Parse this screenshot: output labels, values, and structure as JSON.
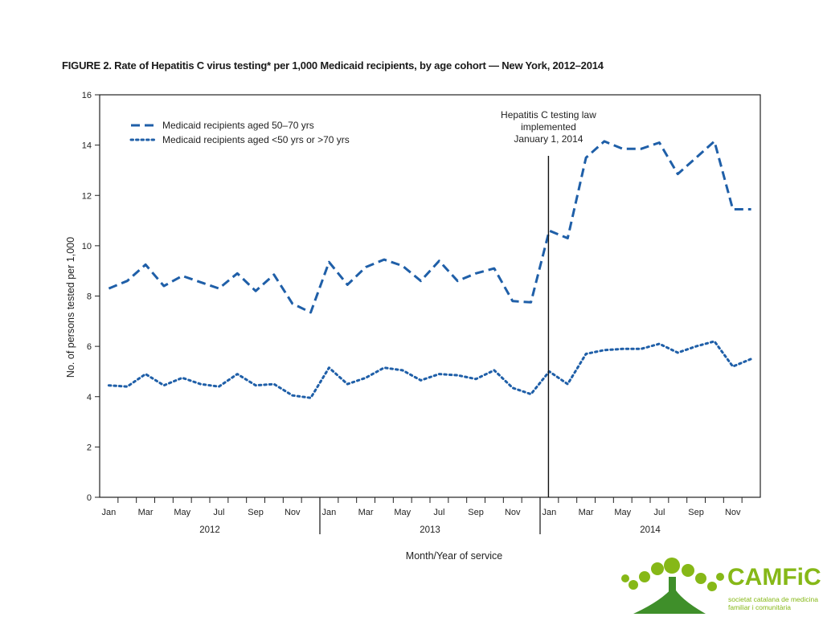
{
  "figure": {
    "title": "FIGURE 2. Rate of Hepatitis C virus testing* per 1,000 Medicaid recipients, by age cohort — New York, 2012–2014"
  },
  "chart_data": {
    "type": "line",
    "xlabel": "Month/Year of service",
    "ylabel": "No. of persons tested per 1,000",
    "ylim": [
      0,
      16
    ],
    "yticks": [
      0,
      2,
      4,
      6,
      8,
      10,
      12,
      14,
      16
    ],
    "grid": false,
    "legend_position": "top-left",
    "tick_labels": [
      "Jan",
      "Mar",
      "May",
      "Jul",
      "Sep",
      "Nov",
      "Jan",
      "Mar",
      "May",
      "Jul",
      "Sep",
      "Nov",
      "Jan",
      "Mar",
      "May",
      "Jul",
      "Sep",
      "Nov"
    ],
    "years": [
      "2012",
      "2013",
      "2014"
    ],
    "annotation": {
      "lines": [
        "Hepatitis C testing law",
        "implemented",
        "January 1, 2014"
      ],
      "at_month_index": 24
    },
    "series": [
      {
        "name": "Medicaid recipients aged 50–70 yrs",
        "style": "dashed",
        "color": "#1f5fa8",
        "values": [
          8.3,
          8.6,
          9.25,
          8.4,
          8.8,
          8.55,
          8.3,
          8.9,
          8.2,
          8.85,
          7.7,
          7.35,
          9.35,
          8.45,
          9.15,
          9.45,
          9.2,
          8.6,
          9.4,
          8.6,
          8.9,
          9.1,
          7.8,
          7.75,
          10.6,
          10.3,
          13.5,
          14.15,
          13.85,
          13.85,
          14.1,
          12.85,
          13.5,
          14.15,
          11.45,
          11.45
        ]
      },
      {
        "name": "Medicaid recipients aged <50 yrs or >70 yrs",
        "style": "dotted",
        "color": "#1f5fa8",
        "values": [
          4.45,
          4.4,
          4.9,
          4.45,
          4.75,
          4.5,
          4.4,
          4.9,
          4.45,
          4.5,
          4.05,
          3.95,
          5.15,
          4.5,
          4.75,
          5.15,
          5.05,
          4.65,
          4.9,
          4.85,
          4.7,
          5.05,
          4.35,
          4.1,
          5.0,
          4.5,
          5.7,
          5.85,
          5.9,
          5.9,
          6.1,
          5.75,
          6.0,
          6.2,
          5.2,
          5.5
        ]
      }
    ]
  },
  "logo": {
    "name": "CAMFiC",
    "subtitle": "societat catalana de medicina familiar i comunitària",
    "colors": {
      "green": "#86b817",
      "dark_green": "#3f8f2a"
    }
  }
}
